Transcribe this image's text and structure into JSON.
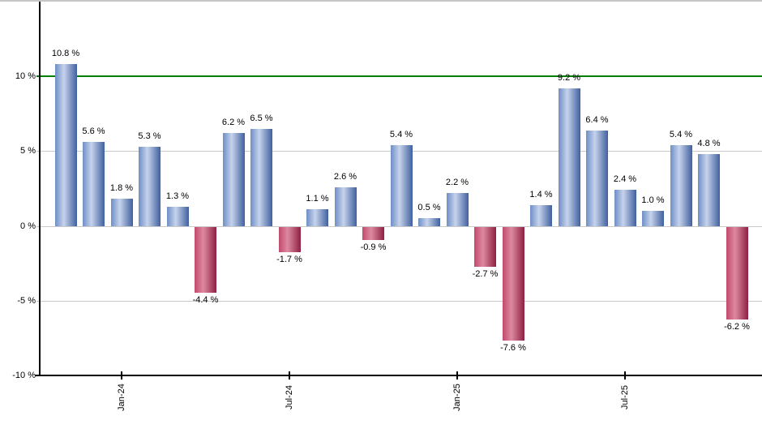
{
  "chart_data": {
    "type": "bar",
    "values": [
      10.8,
      5.6,
      1.8,
      5.3,
      1.3,
      -4.4,
      6.2,
      6.5,
      -1.7,
      1.1,
      2.6,
      -0.9,
      5.4,
      0.5,
      2.2,
      -2.7,
      -7.6,
      1.4,
      9.2,
      6.4,
      2.4,
      1.0,
      5.4,
      4.8,
      -6.2
    ],
    "bar_value_labels": [
      "10.8 %",
      "5.6 %",
      "1.8 %",
      "5.3 %",
      "1.3 %",
      "-4.4 %",
      "6.2 %",
      "6.5 %",
      "-1.7 %",
      "1.1 %",
      "2.6 %",
      "-0.9 %",
      "5.4 %",
      "0.5 %",
      "2.2 %",
      "-2.7 %",
      "-7.6 %",
      "1.4 %",
      "9.2 %",
      "6.4 %",
      "2.4 %",
      "1.0 %",
      "5.4 %",
      "4.8 %",
      "-6.2 %"
    ],
    "x_axis": {
      "ticks": [
        {
          "label": "Jan-24",
          "bar_index": 2
        },
        {
          "label": "Jul-24",
          "bar_index": 8
        },
        {
          "label": "Jan-25",
          "bar_index": 14
        },
        {
          "label": "Jul-25",
          "bar_index": 20
        }
      ],
      "label_rotation_deg": -90
    },
    "y_axis": {
      "ticks": [
        {
          "label": "10 %",
          "value": 10
        },
        {
          "label": "5 %",
          "value": 5
        },
        {
          "label": "0 %",
          "value": 0
        },
        {
          "label": "-5 %",
          "value": -5
        },
        {
          "label": "-10 %",
          "value": -10
        }
      ]
    },
    "ylim": [
      -10,
      15
    ],
    "grid": true,
    "legend": false,
    "reference_line": {
      "value": 10,
      "color": "#008000"
    },
    "colors": {
      "positive_bar": {
        "edge_left": "#6e8ec5",
        "highlight": "#c6d3ec",
        "edge_right": "#40609f"
      },
      "negative_bar": {
        "edge_left": "#c24a6c",
        "highlight": "#dd89a0",
        "edge_right": "#8e2042"
      },
      "gridline": "#c9c9c9",
      "axis": "#000000",
      "top_border": "#c6c6c6",
      "text": "#000000"
    }
  }
}
